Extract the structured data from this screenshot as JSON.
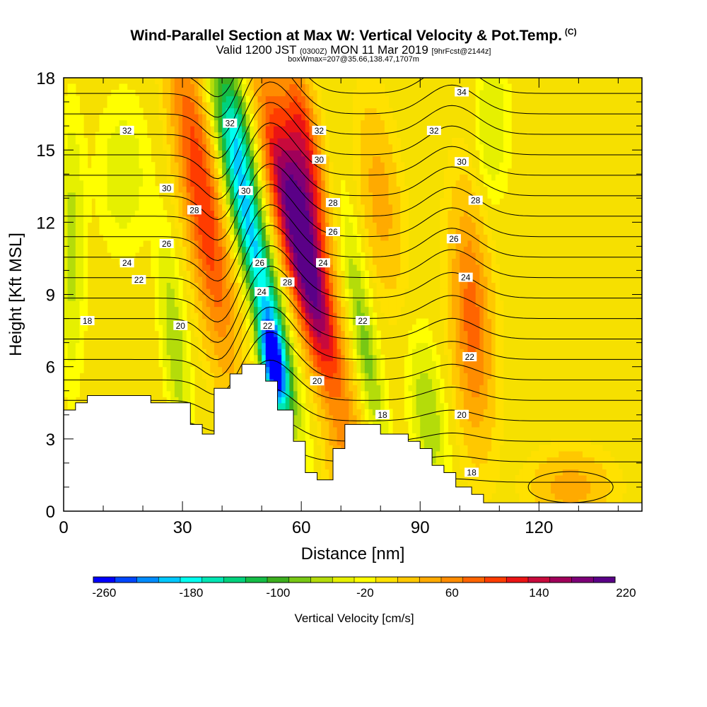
{
  "title": "Wind-Parallel Section at Max W: Vertical Velocity & Pot.Temp.",
  "copyright": "(C)",
  "subtitle_main": "Valid 1200 JST",
  "subtitle_z": "(0300Z)",
  "subtitle_date": "MON 11 Mar 2019",
  "subtitle_fcst": "[9hrFcst@2144z]",
  "subtitle2": "boxWmax=207@35.66,138.47,1707m",
  "colors": {
    "bg_fill": "#f6e000",
    "colorbar": [
      "#0000ff",
      "#0046ff",
      "#008cff",
      "#00c8ff",
      "#00fff0",
      "#00e6b4",
      "#00d27d",
      "#14bd46",
      "#3caf1e",
      "#78c814",
      "#b4dc0a",
      "#e6f000",
      "#ffff00",
      "#ffe100",
      "#ffc800",
      "#ffaa00",
      "#ff8c00",
      "#ff6400",
      "#ff3c00",
      "#eb1414",
      "#c80a3c",
      "#a0005a",
      "#7d0078",
      "#5a0087"
    ]
  },
  "chart_data": {
    "type": "heatmap",
    "xlabel": "Distance [nm]",
    "ylabel": "Height [Kft MSL]",
    "xlim": [
      0,
      146
    ],
    "ylim": [
      0,
      18
    ],
    "x_ticks": [
      "0",
      "30",
      "60",
      "90",
      "120"
    ],
    "y_ticks": [
      "0",
      "3",
      "6",
      "9",
      "12",
      "15",
      "18"
    ],
    "colorbar_label": "Vertical Velocity [cm/s]",
    "colorbar_ticks": [
      "-260",
      "-180",
      "-100",
      "-20",
      "60",
      "140",
      "220"
    ],
    "colorbar_min": -260,
    "colorbar_max": 220,
    "contour_labels": [
      {
        "x": 16,
        "y": 15.8,
        "text": "32"
      },
      {
        "x": 26,
        "y": 13.4,
        "text": "30"
      },
      {
        "x": 33,
        "y": 12.5,
        "text": "28"
      },
      {
        "x": 26,
        "y": 11.1,
        "text": "26"
      },
      {
        "x": 16,
        "y": 10.3,
        "text": "24"
      },
      {
        "x": 19,
        "y": 9.6,
        "text": "22"
      },
      {
        "x": 6,
        "y": 7.9,
        "text": "18"
      },
      {
        "x": 29.5,
        "y": 7.7,
        "text": "20"
      },
      {
        "x": 42,
        "y": 16.1,
        "text": "32"
      },
      {
        "x": 46,
        "y": 13.3,
        "text": "30"
      },
      {
        "x": 49.5,
        "y": 10.3,
        "text": "26"
      },
      {
        "x": 50,
        "y": 9.1,
        "text": "24"
      },
      {
        "x": 51.5,
        "y": 7.7,
        "text": "22"
      },
      {
        "x": 56.5,
        "y": 9.5,
        "text": "28"
      },
      {
        "x": 64.5,
        "y": 15.8,
        "text": "32"
      },
      {
        "x": 64.5,
        "y": 14.6,
        "text": "30"
      },
      {
        "x": 68,
        "y": 12.8,
        "text": "28"
      },
      {
        "x": 68,
        "y": 11.6,
        "text": "26"
      },
      {
        "x": 65.5,
        "y": 10.3,
        "text": "24"
      },
      {
        "x": 64,
        "y": 5.4,
        "text": "20"
      },
      {
        "x": 75.5,
        "y": 7.9,
        "text": "22"
      },
      {
        "x": 80.5,
        "y": 4.0,
        "text": "18"
      },
      {
        "x": 100.5,
        "y": 17.4,
        "text": "34"
      },
      {
        "x": 93.5,
        "y": 15.8,
        "text": "32"
      },
      {
        "x": 100.5,
        "y": 14.5,
        "text": "30"
      },
      {
        "x": 104,
        "y": 12.9,
        "text": "28"
      },
      {
        "x": 98.5,
        "y": 11.3,
        "text": "26"
      },
      {
        "x": 101.5,
        "y": 9.7,
        "text": "24"
      },
      {
        "x": 102.5,
        "y": 6.4,
        "text": "22"
      },
      {
        "x": 100.5,
        "y": 4.0,
        "text": "20"
      },
      {
        "x": 103,
        "y": 1.6,
        "text": "18"
      }
    ],
    "velocity_features": [
      {
        "x": 35,
        "y": 13,
        "sx": 5,
        "sy": 7,
        "w": 120,
        "tilt": -0.3,
        "tag": "updraft-west"
      },
      {
        "x": 60,
        "y": 11,
        "sx": 5,
        "sy": 6,
        "w": 230,
        "tilt": -0.45,
        "tag": "updraft-core"
      },
      {
        "x": 61,
        "y": 15,
        "sx": 4,
        "sy": 4,
        "w": 120,
        "tilt": -0.3,
        "tag": "updraft-upper"
      },
      {
        "x": 48,
        "y": 11,
        "sx": 4,
        "sy": 6,
        "w": -180,
        "tilt": -0.45,
        "tag": "downdraft-core"
      },
      {
        "x": 53,
        "y": 6,
        "sx": 3,
        "sy": 2,
        "w": -230,
        "tilt": -0.3,
        "tag": "downdraft-low"
      },
      {
        "x": 44,
        "y": 16,
        "sx": 4,
        "sy": 3,
        "w": -100,
        "tilt": -0.3,
        "tag": "downdraft-upper"
      },
      {
        "x": 28,
        "y": 7,
        "sx": 3,
        "sy": 4,
        "w": -60,
        "tilt": -0.2,
        "tag": "down-west"
      },
      {
        "x": 76,
        "y": 7,
        "sx": 3,
        "sy": 5,
        "w": -70,
        "tilt": -0.3,
        "tag": "down-mid"
      },
      {
        "x": 92,
        "y": 4,
        "sx": 4,
        "sy": 3,
        "w": -60,
        "tilt": -0.2,
        "tag": "down-east-low"
      },
      {
        "x": 103,
        "y": 8,
        "sx": 5,
        "sy": 5,
        "w": 90,
        "tilt": -0.1,
        "tag": "updraft-east"
      },
      {
        "x": 108,
        "y": 16,
        "sx": 4,
        "sy": 3,
        "w": -40,
        "tilt": 0,
        "tag": "down-east-top"
      },
      {
        "x": 2,
        "y": 11,
        "sx": 3,
        "sy": 5,
        "w": -50,
        "tilt": 0,
        "tag": "down-edge"
      },
      {
        "x": 15,
        "y": 14,
        "sx": 6,
        "sy": 3,
        "w": -35,
        "tilt": 0,
        "tag": "down-west-top"
      },
      {
        "x": 72,
        "y": 2,
        "sx": 6,
        "sy": 2,
        "w": 40,
        "tilt": 0,
        "tag": "up-valley"
      },
      {
        "x": 128,
        "y": 1,
        "sx": 10,
        "sy": 1.5,
        "w": 50,
        "tilt": 0,
        "tag": "up-east-low"
      },
      {
        "x": 80,
        "y": 13,
        "sx": 5,
        "sy": 4,
        "w": 50,
        "tilt": -0.2,
        "tag": "up-mid-top"
      }
    ],
    "terrain": [
      [
        0,
        4.2
      ],
      [
        3,
        4.2
      ],
      [
        3,
        4.5
      ],
      [
        6,
        4.5
      ],
      [
        6,
        4.8
      ],
      [
        22,
        4.8
      ],
      [
        22,
        4.5
      ],
      [
        32,
        4.5
      ],
      [
        32,
        3.6
      ],
      [
        35,
        3.6
      ],
      [
        35,
        3.2
      ],
      [
        38,
        3.2
      ],
      [
        38,
        5.1
      ],
      [
        42,
        5.1
      ],
      [
        42,
        5.7
      ],
      [
        45,
        5.7
      ],
      [
        45,
        6.1
      ],
      [
        51,
        6.1
      ],
      [
        51,
        5.4
      ],
      [
        54,
        5.4
      ],
      [
        54,
        4.2
      ],
      [
        58,
        4.2
      ],
      [
        58,
        2.9
      ],
      [
        61,
        2.9
      ],
      [
        61,
        1.6
      ],
      [
        64,
        1.6
      ],
      [
        64,
        1.3
      ],
      [
        68,
        1.3
      ],
      [
        68,
        2.6
      ],
      [
        71,
        2.6
      ],
      [
        71,
        3.6
      ],
      [
        80,
        3.6
      ],
      [
        80,
        3.2
      ],
      [
        87,
        3.2
      ],
      [
        87,
        2.9
      ],
      [
        90,
        2.9
      ],
      [
        90,
        2.6
      ],
      [
        93,
        2.6
      ],
      [
        93,
        1.9
      ],
      [
        96,
        1.9
      ],
      [
        96,
        1.6
      ],
      [
        99,
        1.6
      ],
      [
        99,
        1.0
      ],
      [
        103,
        1.0
      ],
      [
        103,
        0.7
      ],
      [
        106,
        0.7
      ],
      [
        106,
        0.35
      ],
      [
        146,
        0.35
      ]
    ]
  }
}
